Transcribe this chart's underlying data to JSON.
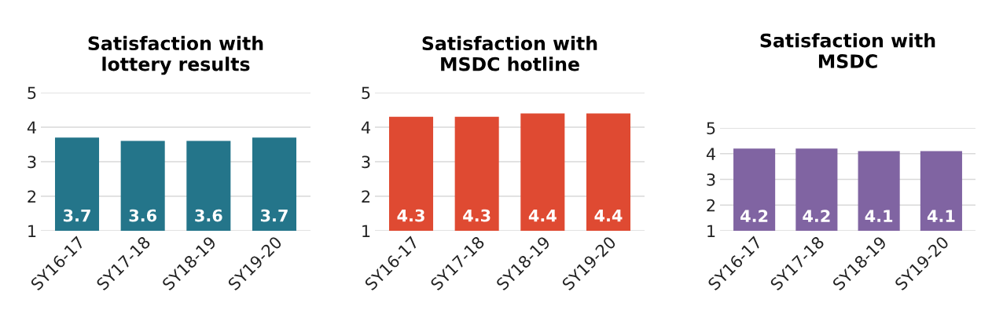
{
  "chart_data": [
    {
      "type": "bar",
      "title": "Satisfaction with\nlottery results",
      "categories": [
        "SY16-17",
        "SY17-18",
        "SY18-19",
        "SY19-20"
      ],
      "values": [
        3.7,
        3.6,
        3.6,
        3.7
      ],
      "color": "#24758a",
      "ylim": [
        1,
        5
      ],
      "yticks": [
        1,
        2,
        3,
        4,
        5
      ],
      "grid": "y",
      "data_labels": true
    },
    {
      "type": "bar",
      "title": "Satisfaction with\nMSDC hotline",
      "categories": [
        "SY16-17",
        "SY17-18",
        "SY18-19",
        "SY19-20"
      ],
      "values": [
        4.3,
        4.3,
        4.4,
        4.4
      ],
      "color": "#df4a32",
      "ylim": [
        1,
        5
      ],
      "yticks": [
        1,
        2,
        3,
        4,
        5
      ],
      "grid": "y",
      "data_labels": true
    },
    {
      "type": "bar",
      "title": "Satisfaction with\nMSDC",
      "categories": [
        "SY16-17",
        "SY17-18",
        "SY18-19",
        "SY19-20"
      ],
      "values": [
        4.2,
        4.2,
        4.1,
        4.1
      ],
      "color": "#8064a2",
      "ylim": [
        1,
        5
      ],
      "yticks": [
        1,
        2,
        3,
        4,
        5
      ],
      "grid": "y",
      "data_labels": true
    }
  ]
}
